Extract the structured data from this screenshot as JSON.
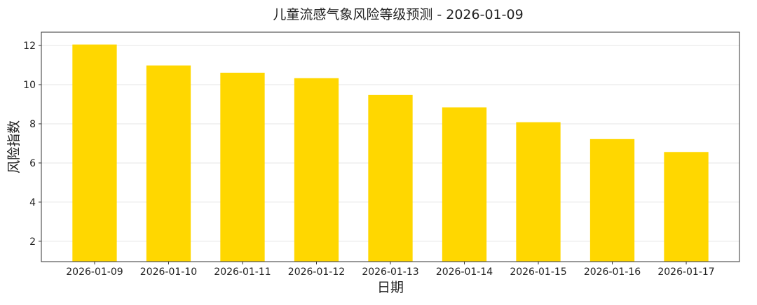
{
  "chart_data": {
    "type": "bar",
    "title": "儿童流感气象风险等级预测 - 2026-01-09",
    "xlabel": "日期",
    "ylabel": "风险指数",
    "categories": [
      "2026-01-09",
      "2026-01-10",
      "2026-01-11",
      "2026-01-12",
      "2026-01-13",
      "2026-01-14",
      "2026-01-15",
      "2026-01-16",
      "2026-01-17"
    ],
    "values": [
      12.05,
      10.98,
      10.61,
      10.33,
      9.47,
      8.84,
      8.08,
      7.22,
      6.56
    ],
    "ylim": [
      0.96,
      12.68
    ],
    "yticks": [
      2,
      4,
      6,
      8,
      10,
      12
    ],
    "grid": "horizontal",
    "bar_color": "#FFD700"
  }
}
